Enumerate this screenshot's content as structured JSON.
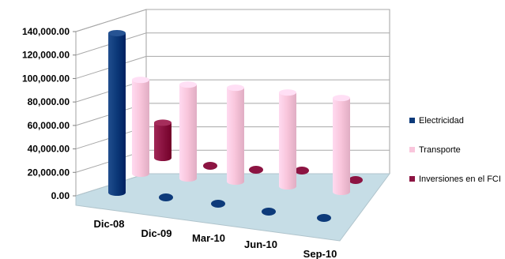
{
  "chart_data": {
    "type": "bar",
    "style": "3d-cylinder",
    "categories": [
      "Dic-08",
      "Dic-09",
      "Mar-10",
      "Jun-10",
      "Sep-10"
    ],
    "series": [
      {
        "name": "Electricidad",
        "color": "#0d3a7a",
        "values": [
          136000,
          0,
          0,
          0,
          0
        ]
      },
      {
        "name": "Transporte",
        "color": "#f9c6dc",
        "values": [
          80000,
          80000,
          80000,
          80000,
          80000
        ]
      },
      {
        "name": "Inversiones en el FCI",
        "color": "#8c1442",
        "values": [
          30000,
          0,
          0,
          0,
          0
        ]
      }
    ],
    "y_ticks": [
      "140,000.00",
      "120,000.00",
      "100,000.00",
      "80,000.00",
      "60,000.00",
      "40,000.00",
      "20,000.00",
      "0.00"
    ],
    "ylim": [
      0,
      140000
    ],
    "grid": true,
    "legend_position": "right",
    "floor_color": "#c6dde6"
  }
}
